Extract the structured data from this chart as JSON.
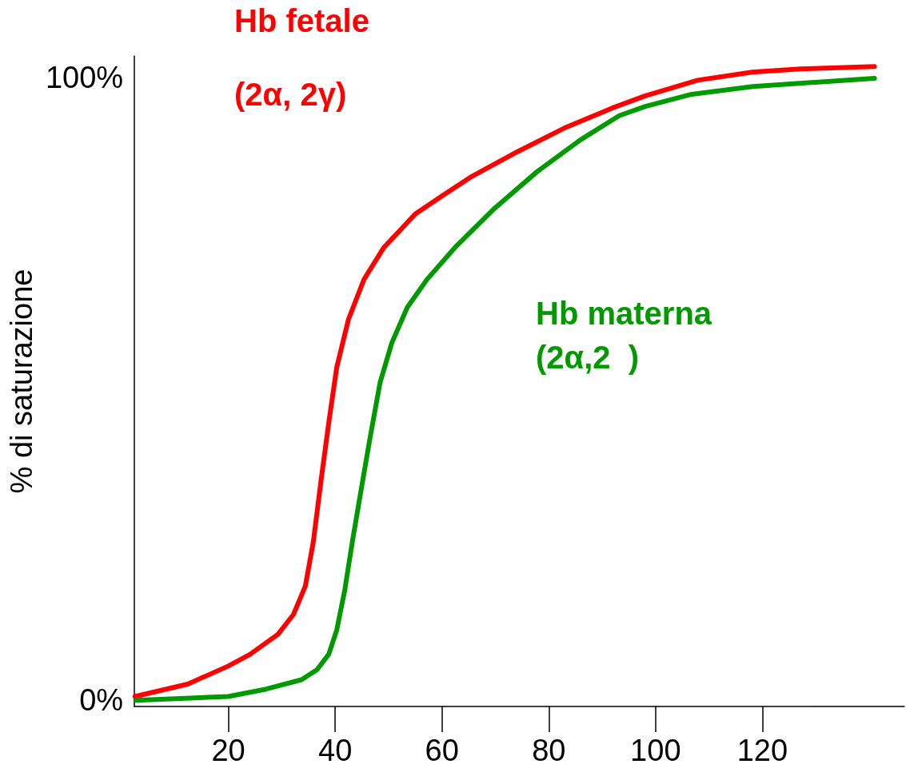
{
  "chart_data": {
    "type": "line",
    "ylabel": "% di saturazione",
    "xlim": [
      2.4,
      146.6
    ],
    "xticks": [
      20,
      40,
      60,
      80,
      100,
      120
    ],
    "ylim": [
      -1,
      103.5
    ],
    "yticks": [
      {
        "value": 0,
        "label": "0%"
      },
      {
        "value": 100,
        "label": "100%"
      }
    ],
    "grid": false,
    "legend": false,
    "marker": "none",
    "line_style": "solid",
    "annotations": [
      "(2α, 2γ)",
      "(2α,2  )"
    ],
    "series": [
      {
        "name": "Hb fetale",
        "color": "#ff0000",
        "x": [
          2.5,
          12.4,
          20,
          24.1,
          29.3,
          32.2,
          34.4,
          35.9,
          37.4,
          38.8,
          40.3,
          42.5,
          45.4,
          49.1,
          55,
          60,
          65.3,
          74.1,
          82.9,
          91.8,
          98.1,
          107.9,
          118.1,
          127.1,
          141
        ],
        "values": [
          0.6,
          2.6,
          5.5,
          7.4,
          10.6,
          13.8,
          18.3,
          25.4,
          35.6,
          44.6,
          53.5,
          61.2,
          67.6,
          72.7,
          78.1,
          81,
          84,
          88.1,
          91.9,
          95.1,
          97.1,
          99.6,
          100.9,
          101.4,
          101.8
        ]
      },
      {
        "name": "Hb materna",
        "color": "#009900",
        "x": [
          2.8,
          20,
          27.1,
          33.7,
          36.6,
          38.8,
          40.3,
          41.8,
          43.2,
          44.7,
          46.5,
          48.4,
          50.6,
          53.5,
          57.2,
          62.4,
          69.7,
          77.8,
          85.9,
          93.2,
          98.1,
          106.5,
          118.2,
          141
        ],
        "values": [
          0,
          0.6,
          1.8,
          3.3,
          4.9,
          7.4,
          11.3,
          17.7,
          25.4,
          33,
          42,
          51,
          57.4,
          63.1,
          67.6,
          72.7,
          78.9,
          84.9,
          90,
          93.9,
          95.4,
          97.3,
          98.6,
          99.9
        ]
      }
    ]
  }
}
